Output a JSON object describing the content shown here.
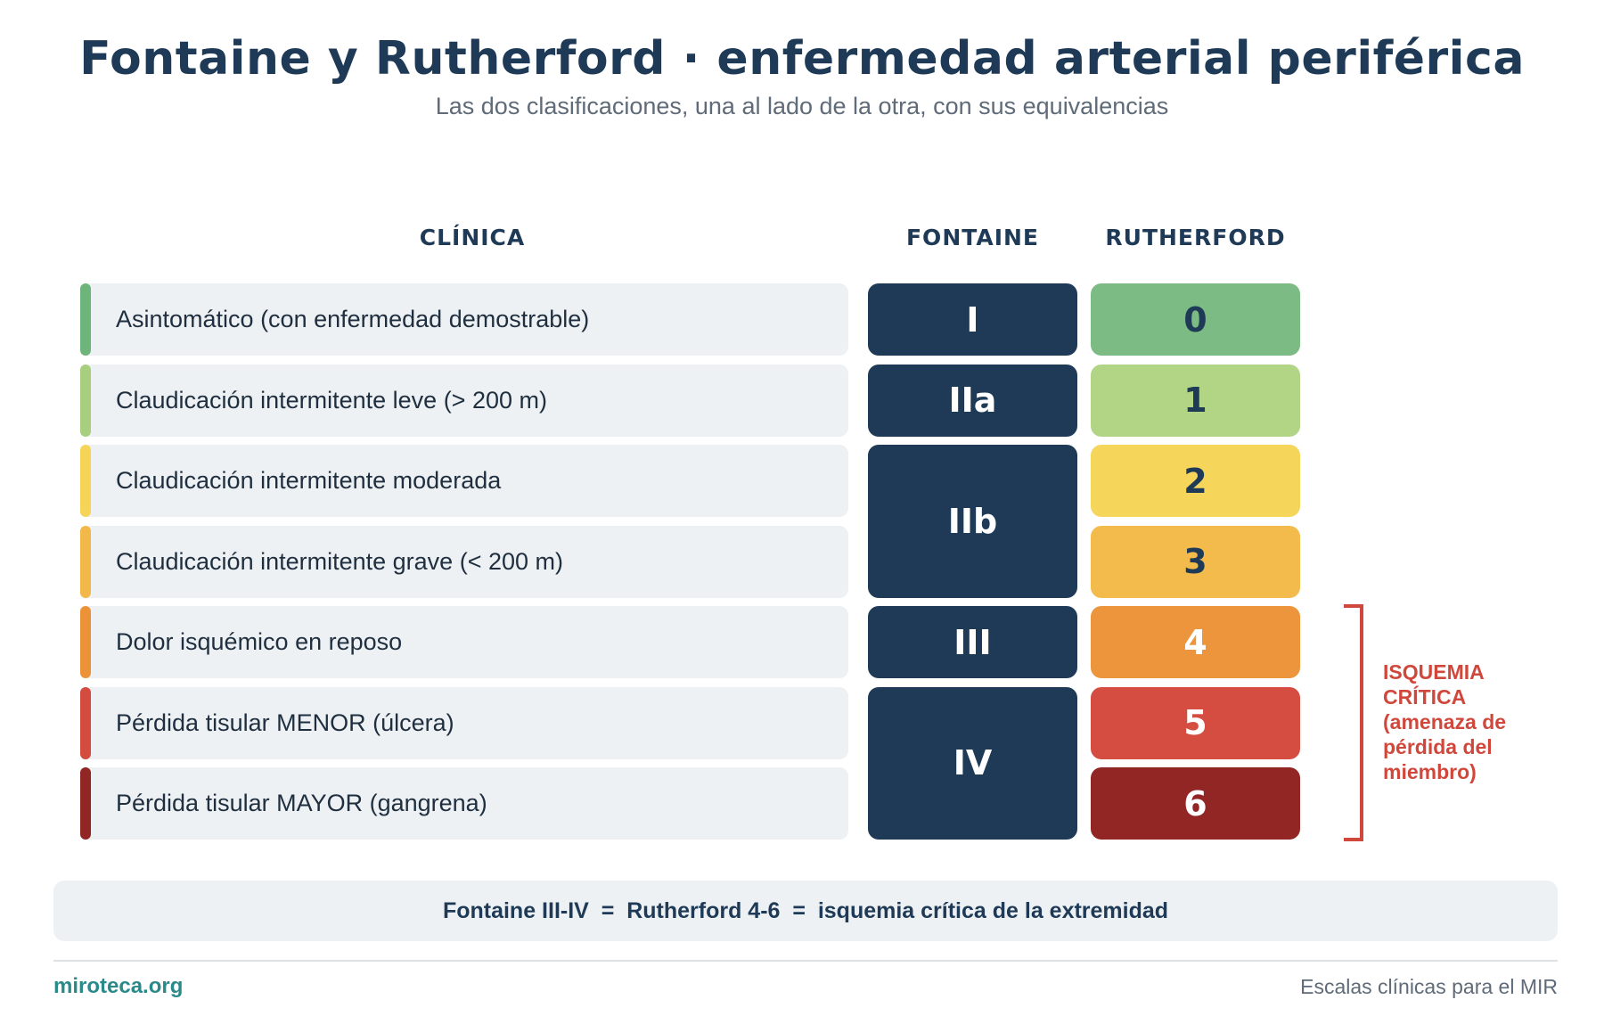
{
  "title": "Fontaine y Rutherford · enfermedad arterial periférica",
  "subtitle": "Las dos clasificaciones, una al lado de la otra, con sus equivalencias",
  "columns": {
    "clinica": "CLÍNICA",
    "fontaine": "FONTAINE",
    "rutherford": "RUTHERFORD"
  },
  "rows": [
    {
      "clinica": "Asintomático (con enfermedad demostrable)",
      "accent": "#6db57a"
    },
    {
      "clinica": "Claudicación intermitente leve (> 200 m)",
      "accent": "#a8cf7e"
    },
    {
      "clinica": "Claudicación intermitente moderada",
      "accent": "#f5d457"
    },
    {
      "clinica": "Claudicación intermitente grave (< 200 m)",
      "accent": "#f2b94a"
    },
    {
      "clinica": "Dolor isquémico en reposo",
      "accent": "#ec9238"
    },
    {
      "clinica": "Pérdida tisular MENOR (úlcera)",
      "accent": "#d44b3f"
    },
    {
      "clinica": "Pérdida tisular MAYOR (gangrena)",
      "accent": "#922625"
    }
  ],
  "fontaine": [
    {
      "label": "I",
      "covers_rows": 1
    },
    {
      "label": "IIa",
      "covers_rows": 1
    },
    {
      "label": "IIb",
      "covers_rows": 2
    },
    {
      "label": "III",
      "covers_rows": 1
    },
    {
      "label": "IV",
      "covers_rows": 2
    }
  ],
  "rutherford": [
    {
      "label": "0",
      "bg": "#7cbb83",
      "fg": "#1e3a56"
    },
    {
      "label": "1",
      "bg": "#b2d485",
      "fg": "#1e3a56"
    },
    {
      "label": "2",
      "bg": "#f6d55b",
      "fg": "#1e3a56"
    },
    {
      "label": "3",
      "bg": "#f3bb4b",
      "fg": "#1e3a56"
    },
    {
      "label": "4",
      "bg": "#ec953c",
      "fg": "#ffffff"
    },
    {
      "label": "5",
      "bg": "#d54c40",
      "fg": "#ffffff"
    },
    {
      "label": "6",
      "bg": "#922625",
      "fg": "#ffffff"
    }
  ],
  "critical": {
    "lines": [
      "ISQUEMIA",
      "CRÍTICA",
      "(amenaza de",
      "pérdida del",
      "miembro)"
    ],
    "color": "#d0483c"
  },
  "summary": "Fontaine III-IV  =  Rutherford 4-6  =  isquemia crítica de la extremidad",
  "footer": {
    "site": "miroteca.org",
    "tagline": "Escalas clínicas para el MIR"
  }
}
